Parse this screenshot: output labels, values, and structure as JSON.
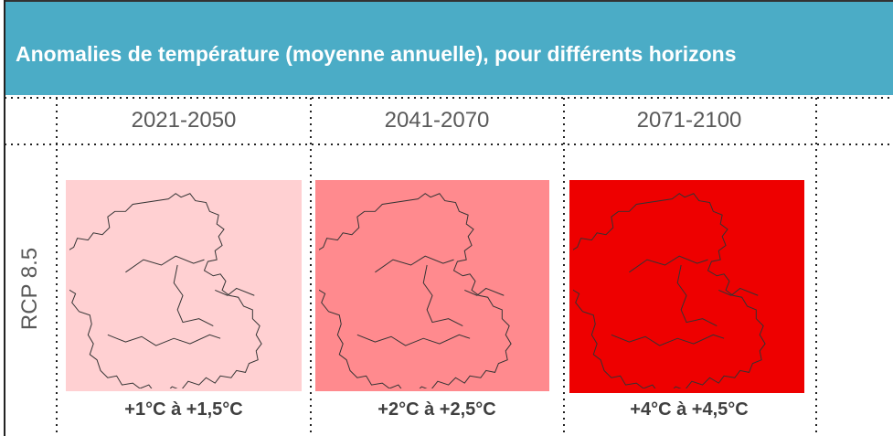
{
  "header": {
    "title": "Anomalies de température (moyenne annuelle), pour différents horizons"
  },
  "table": {
    "columns": [
      "2021-2050",
      "2041-2070",
      "2071-2100"
    ],
    "row_label": "RCP 8.5",
    "cells": [
      "+1°C à +1,5°C",
      "+2°C à +2,5°C",
      "+4°C à +4,5°C"
    ]
  }
}
